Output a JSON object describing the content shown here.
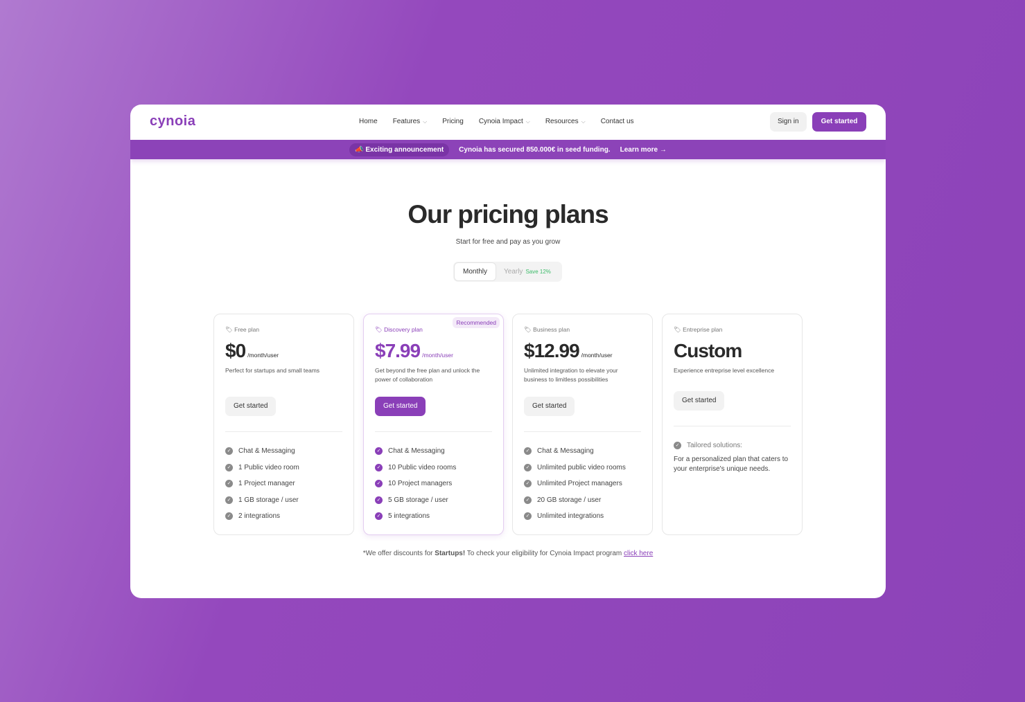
{
  "brand": {
    "logo": "cynoia",
    "accent": "#8a3fb8"
  },
  "nav": {
    "items": [
      {
        "label": "Home",
        "dropdown": false
      },
      {
        "label": "Features",
        "dropdown": true
      },
      {
        "label": "Pricing",
        "dropdown": false
      },
      {
        "label": "Cynoia Impact",
        "dropdown": true
      },
      {
        "label": "Resources",
        "dropdown": true
      },
      {
        "label": "Contact us",
        "dropdown": false
      }
    ],
    "sign_in": "Sign in",
    "get_started": "Get started"
  },
  "banner": {
    "pill": "Exciting announcement",
    "message": "Cynoia has secured 850.000€ in seed funding.",
    "link": "Learn more →"
  },
  "hero": {
    "title": "Our pricing plans",
    "subtitle": "Start for free and pay as you grow"
  },
  "billing": {
    "monthly": "Monthly",
    "yearly": "Yearly",
    "save": "Save 12%",
    "selected": "Monthly"
  },
  "plans": [
    {
      "name": "Free plan",
      "price": "$0",
      "unit": "/month/user",
      "desc": "Perfect for startups and small teams",
      "cta": "Get started",
      "features": [
        "Chat & Messaging",
        "1 Public video room",
        "1 Project manager",
        "1 GB storage / user",
        "2 integrations"
      ]
    },
    {
      "name": "Discovery plan",
      "badge": "Recommended",
      "price": "$7.99",
      "unit": "/month/user",
      "desc": "Get beyond the free plan and unlock the power of collaboration",
      "cta": "Get started",
      "features": [
        "Chat & Messaging",
        "10 Public video rooms",
        "10 Project managers",
        "5 GB storage / user",
        "5 integrations"
      ]
    },
    {
      "name": "Business plan",
      "price": "$12.99",
      "unit": "/month/user",
      "desc": "Unlimited integration to elevate your business to limitless possibilities",
      "cta": "Get started",
      "features": [
        "Chat & Messaging",
        "Unlimited public video rooms",
        "Unlimited Project managers",
        "20 GB storage / user",
        "Unlimited integrations"
      ]
    },
    {
      "name": "Entreprise plan",
      "price": "Custom",
      "desc": "Experience entreprise level excellence",
      "cta": "Get started",
      "tailored_title": "Tailored solutions:",
      "tailored_text": "For a personalized plan that caters to your enterprise's unique needs."
    }
  ],
  "footer": {
    "prefix": "*We offer discounts for ",
    "bold": "Startups!",
    "middle": " To check your eligibility for Cynoia Impact program ",
    "link": "click here"
  }
}
